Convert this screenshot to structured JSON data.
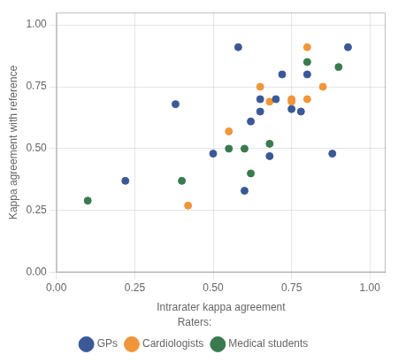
{
  "chart_data": {
    "type": "scatter",
    "xlabel": "Intrarater kappa agreement",
    "ylabel": "Kappa agreement with reference",
    "series": [
      {
        "name": "GPs",
        "color": "#3b5998",
        "x": [
          0.22,
          0.38,
          0.5,
          0.58,
          0.6,
          0.62,
          0.65,
          0.65,
          0.68,
          0.7,
          0.72,
          0.75,
          0.78,
          0.8,
          0.88,
          0.93
        ],
        "values": [
          0.37,
          0.68,
          0.48,
          0.91,
          0.33,
          0.61,
          0.65,
          0.7,
          0.47,
          0.7,
          0.8,
          0.66,
          0.65,
          0.8,
          0.48,
          0.91
        ]
      },
      {
        "name": "Cardiologists",
        "color": "#f0963a",
        "x": [
          0.42,
          0.55,
          0.65,
          0.68,
          0.75,
          0.75,
          0.8,
          0.8,
          0.85
        ],
        "values": [
          0.27,
          0.57,
          0.75,
          0.69,
          0.69,
          0.7,
          0.7,
          0.91,
          0.75
        ]
      },
      {
        "name": "Medical students",
        "color": "#3a7a4e",
        "x": [
          0.1,
          0.4,
          0.55,
          0.6,
          0.62,
          0.68,
          0.8,
          0.9
        ],
        "values": [
          0.29,
          0.37,
          0.5,
          0.5,
          0.4,
          0.52,
          0.85,
          0.83
        ]
      }
    ],
    "xlim": [
      0.0,
      1.05
    ],
    "ylim": [
      0.0,
      1.05
    ],
    "xticks": [
      {
        "value": 0.0,
        "label": "0.00"
      },
      {
        "value": 0.25,
        "label": "0.25"
      },
      {
        "value": 0.5,
        "label": "0.50"
      },
      {
        "value": 0.75,
        "label": "0.75"
      },
      {
        "value": 1.0,
        "label": "1.00"
      }
    ],
    "yticks": [
      {
        "value": 0.0,
        "label": "0.00"
      },
      {
        "value": 0.25,
        "label": "0.25"
      },
      {
        "value": 0.5,
        "label": "0.50"
      },
      {
        "value": 0.75,
        "label": "0.75"
      },
      {
        "value": 1.0,
        "label": "1.00"
      }
    ],
    "grid": true,
    "legend": "bottom",
    "legend_title": "Raters:",
    "marker": "circle"
  }
}
